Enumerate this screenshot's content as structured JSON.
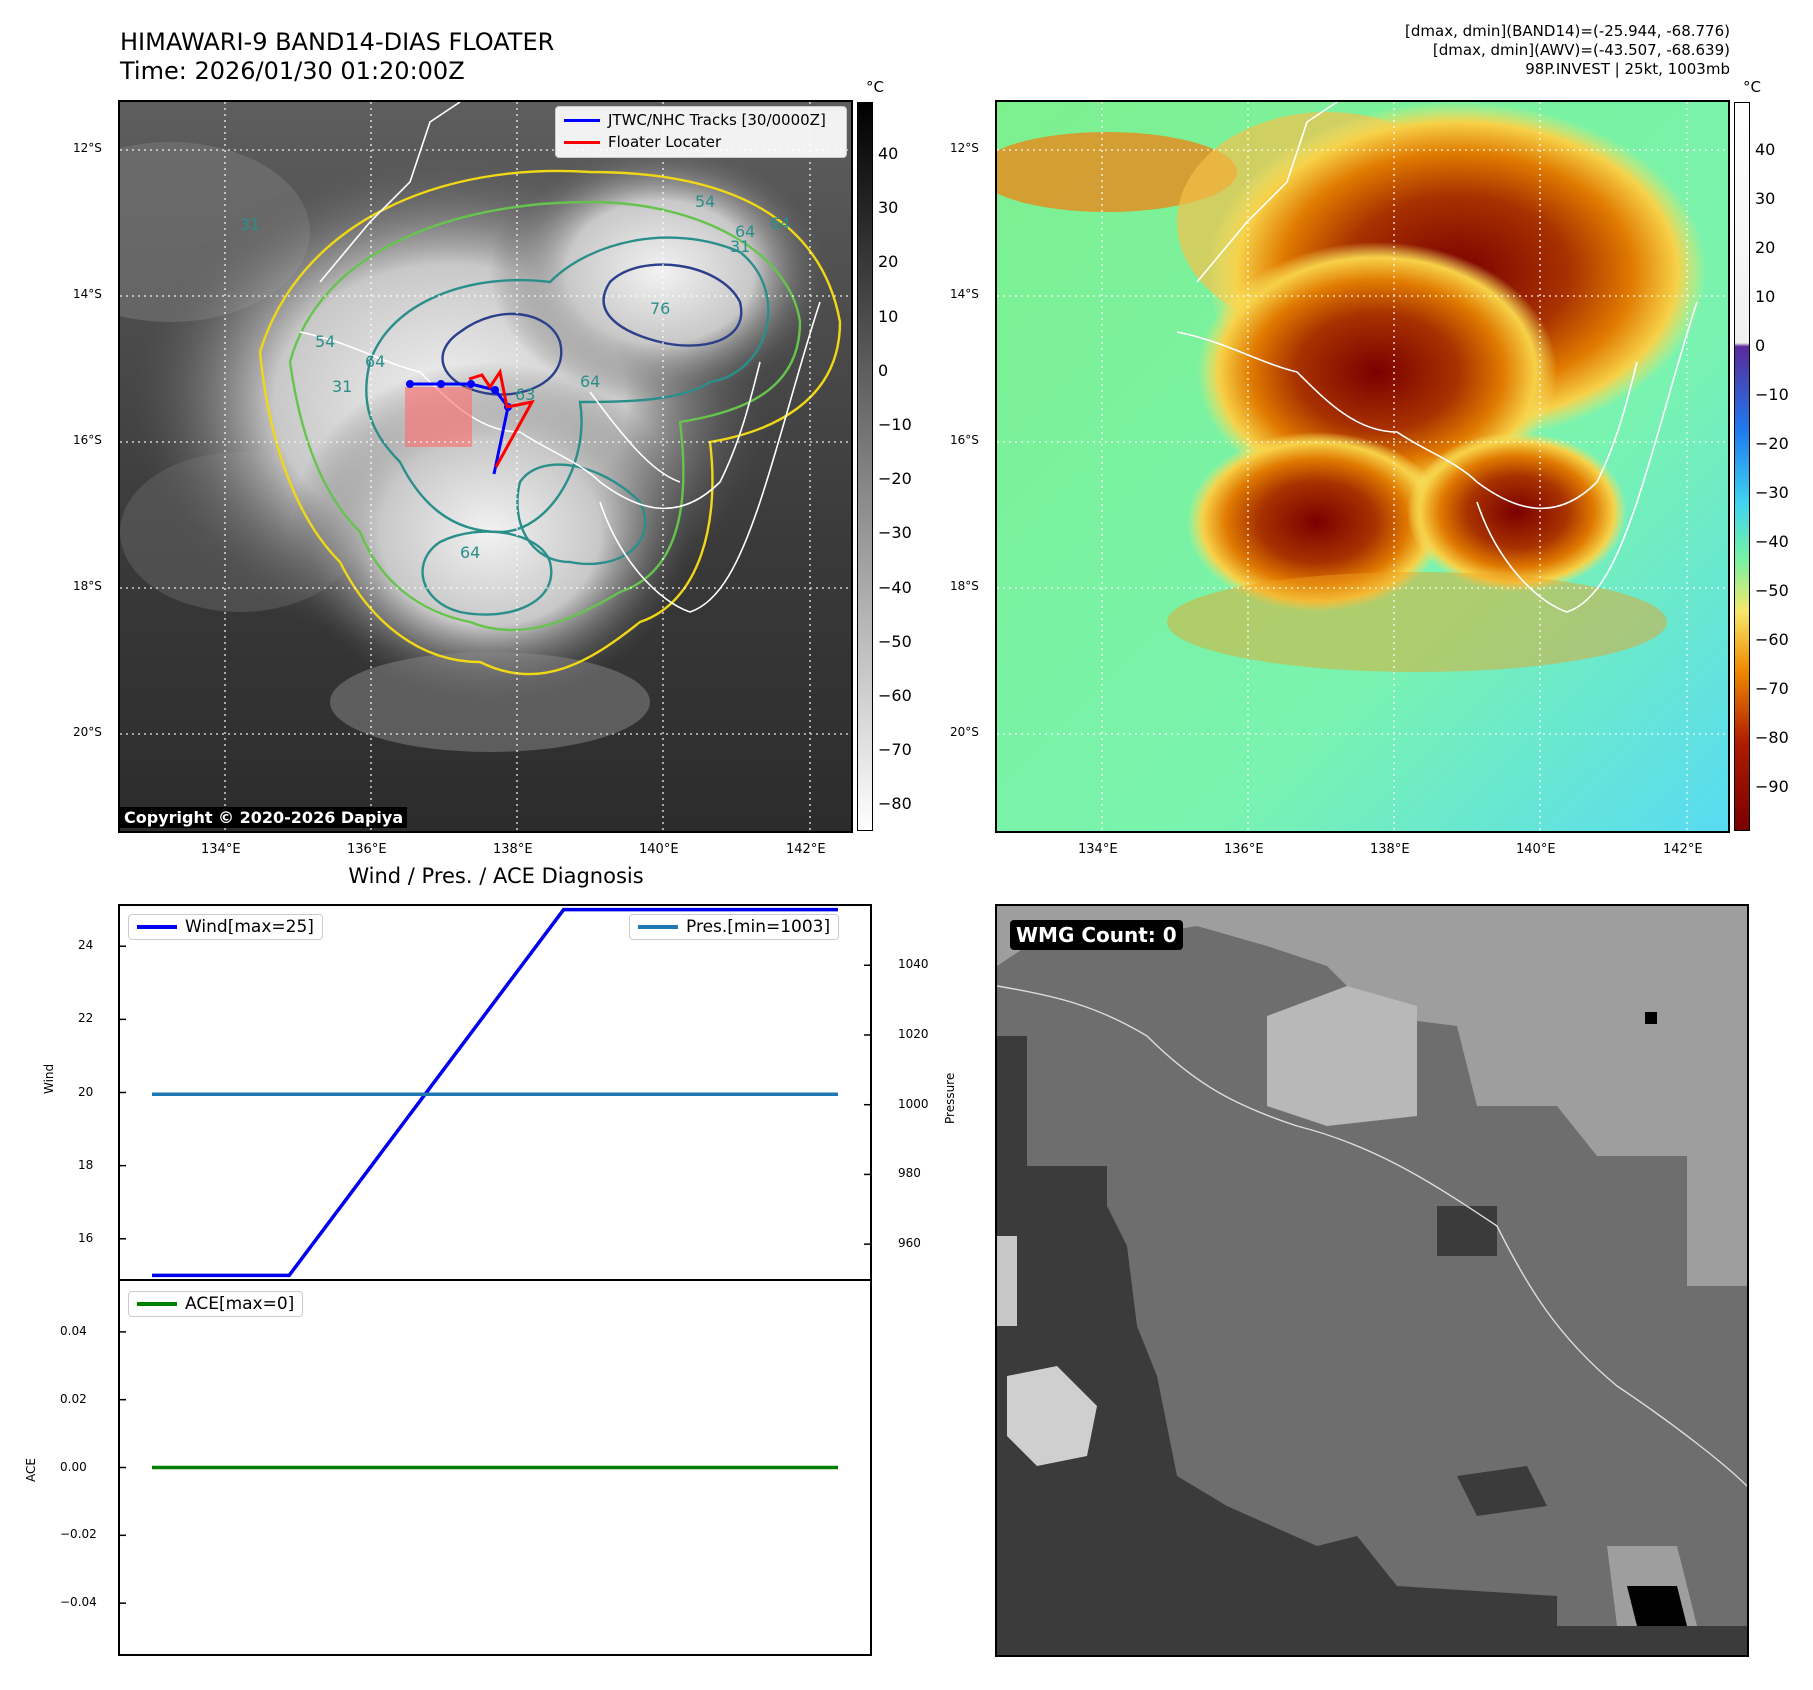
{
  "header": {
    "title_line1": "HIMAWARI-9 BAND14-DIAS FLOATER",
    "title_line2": "Time: 2026/01/30 01:20:00Z",
    "meta_line1": "[dmax, dmin](BAND14)=(-25.944, -68.776)",
    "meta_line2": "[dmax, dmin](AWV)=(-43.507, -68.639)",
    "meta_line3": "98P.INVEST | 25kt, 1003mb"
  },
  "map_axes": {
    "lat_labels": [
      "12°S",
      "14°S",
      "16°S",
      "18°S",
      "20°S"
    ],
    "lon_labels": [
      "134°E",
      "136°E",
      "138°E",
      "140°E",
      "142°E"
    ]
  },
  "ir_panel": {
    "legend": {
      "track_label": "JTWC/NHC Tracks [30/0000Z]",
      "floater_label": "Floater Locater"
    },
    "copyright": "Copyright © 2020-2026 Dapiya",
    "contour_labels": [
      "31",
      "54",
      "64",
      "64",
      "54",
      "64",
      "76",
      "31",
      "64",
      "63",
      "31",
      "64"
    ],
    "colorbar": {
      "unit": "°C",
      "ticks": [
        "40",
        "30",
        "20",
        "10",
        "0",
        "−10",
        "−20",
        "−30",
        "−40",
        "−50",
        "−60",
        "−70",
        "−80"
      ]
    }
  },
  "awv_panel": {
    "colorbar": {
      "unit": "°C",
      "ticks": [
        "40",
        "30",
        "20",
        "10",
        "0",
        "−10",
        "−20",
        "−30",
        "−40",
        "−50",
        "−60",
        "−70",
        "−80",
        "−90"
      ]
    }
  },
  "wind_panel": {
    "subtitle": "Wind / Pres. / ACE Diagnosis",
    "wind_legend": "Wind[max=25]",
    "pres_legend": "Pres.[min=1003]",
    "ylabel_left": "Wind",
    "ylabel_right": "Pressure",
    "wind_ticks": [
      "16",
      "18",
      "20",
      "22",
      "24"
    ],
    "pres_ticks": [
      "960",
      "980",
      "1000",
      "1020",
      "1040"
    ]
  },
  "ace_panel": {
    "legend": "ACE[max=0]",
    "ylabel": "ACE",
    "ticks": [
      "0.04",
      "0.02",
      "0.00",
      "−0.02",
      "−0.04"
    ]
  },
  "wmg_panel": {
    "label": "WMG Count: 0"
  },
  "colors": {
    "wind": "#0000ee",
    "pressure": "#1f77b4",
    "ace": "#008000",
    "track": "#0000ff",
    "floater": "#ff0000"
  },
  "chart_data": [
    {
      "type": "line",
      "title": "Wind / Pres. / ACE Diagnosis",
      "xlabel": "",
      "ylabel": "Wind",
      "ylim": [
        14.9,
        25.1
      ],
      "series": [
        {
          "name": "Wind[max=25]",
          "x": [
            0,
            2,
            6,
            10
          ],
          "y": [
            15,
            15,
            25,
            25
          ]
        }
      ]
    },
    {
      "type": "line",
      "ylabel": "Pressure",
      "ylim": [
        950,
        1057
      ],
      "series": [
        {
          "name": "Pres.[min=1003]",
          "x": [
            0,
            10
          ],
          "y": [
            1003,
            1003
          ]
        }
      ]
    },
    {
      "type": "line",
      "ylabel": "ACE",
      "ylim": [
        -0.055,
        0.055
      ],
      "series": [
        {
          "name": "ACE[max=0]",
          "x": [
            0,
            10
          ],
          "y": [
            0,
            0
          ]
        }
      ]
    }
  ]
}
